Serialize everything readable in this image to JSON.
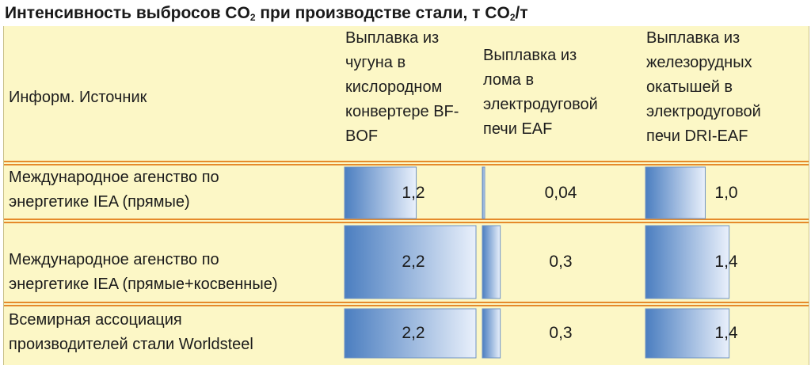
{
  "title": {
    "text": "Интенсивность выбросов  CO",
    "sub": "2",
    "text2": " при производстве стали, т CO",
    "sub2": "2",
    "text3": "/т"
  },
  "header": {
    "source_label": "Информ. Источник",
    "col1": [
      "Выплавка из",
      "чугуна в",
      "кислородном",
      "конвертере BF-",
      "BOF"
    ],
    "col2": [
      "Выплавка из",
      "лома в",
      "электродуговой",
      "печи EAF"
    ],
    "col3": [
      "Выплавка из",
      "железорудных",
      "окатышей в",
      "электродуговой",
      "печи DRI-EAF"
    ]
  },
  "chart_data": {
    "type": "table",
    "columns": [
      "Выплавка из чугуна в кислородном конвертере BF-BOF",
      "Выплавка из лома в электродуговой печи EAF",
      "Выплавка из железорудных окатышей в электродуговой печи DRI-EAF"
    ],
    "rows": [
      {
        "source": [
          "Международное агенство по",
          "энергетике IEA (прямые)"
        ],
        "values": [
          1.2,
          0.04,
          1.0
        ],
        "labels": [
          "1,2",
          "0,04",
          "1,0"
        ]
      },
      {
        "source": [
          "Международное агенство по",
          "энергетике IEA (прямые+косвенные)"
        ],
        "values": [
          2.2,
          0.3,
          1.4
        ],
        "labels": [
          "2,2",
          "0,3",
          "1,4"
        ]
      },
      {
        "source": [
          "Всемирная ассоциация",
          "производителей стали Worldsteel"
        ],
        "values": [
          2.2,
          0.3,
          1.4
        ],
        "labels": [
          "2,2",
          "0,3",
          "1,4"
        ]
      }
    ],
    "bar_max": 2.2
  },
  "colors": {
    "background": "#fcf7c6",
    "separator": "#e58a2a",
    "bar_dark": "#4b7ec0",
    "bar_light": "#e9f0fb"
  }
}
